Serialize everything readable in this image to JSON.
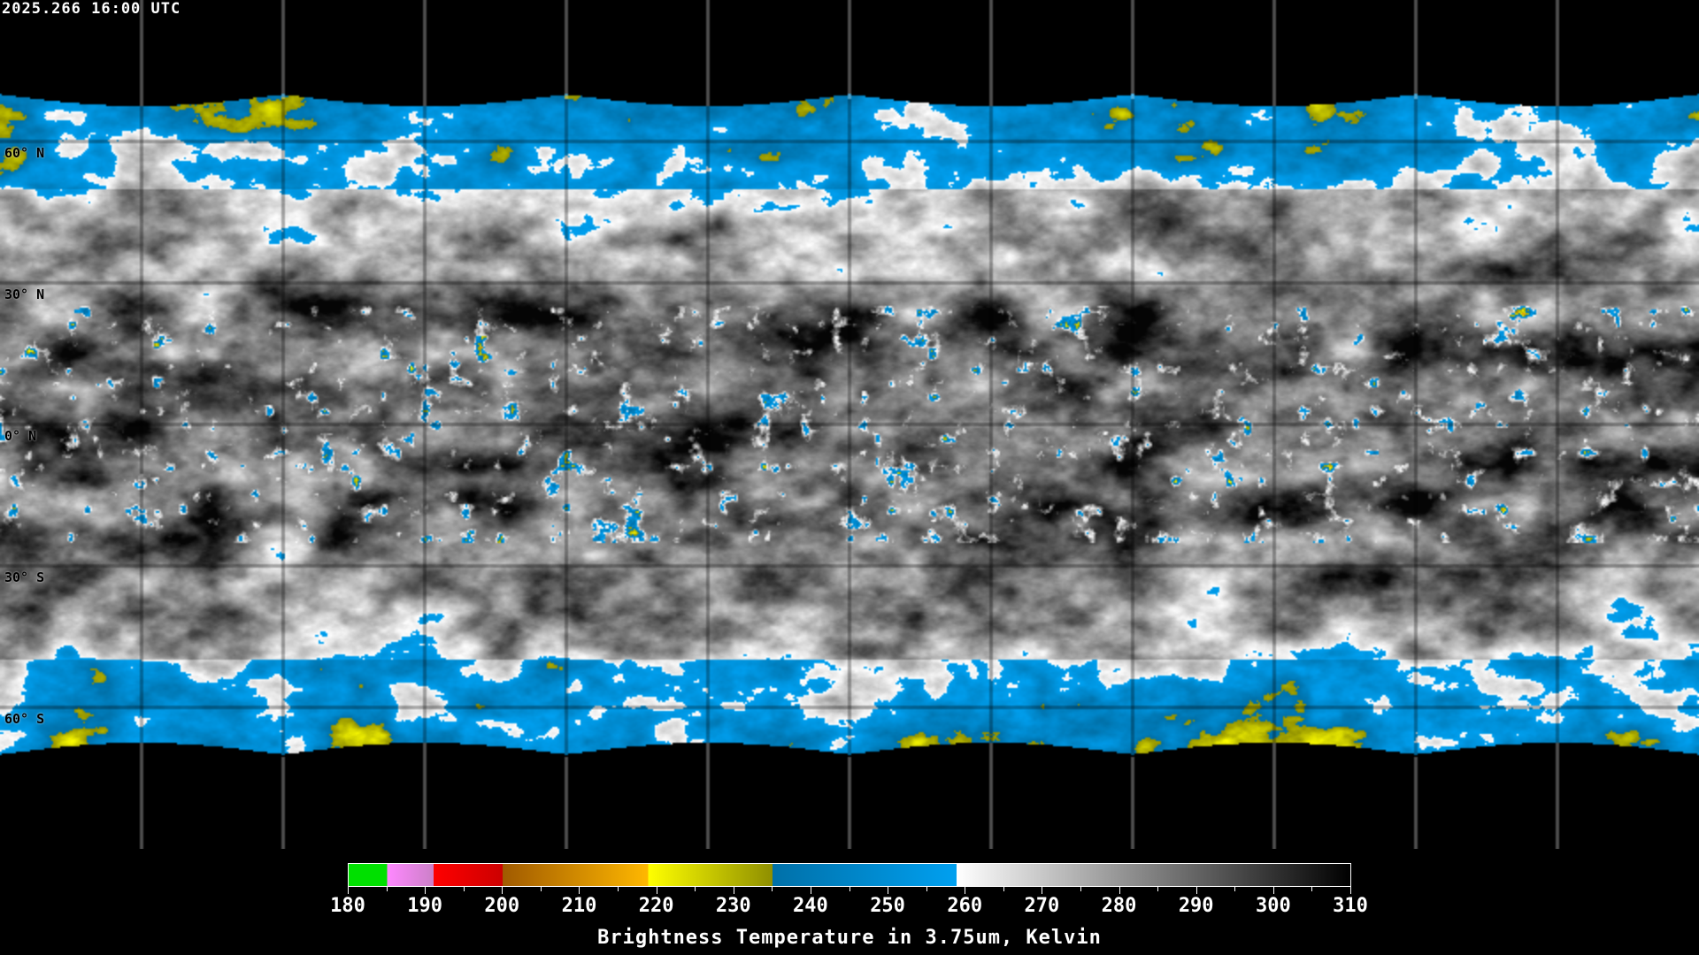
{
  "header": {
    "timestamp": "2025.266 16:00 UTC"
  },
  "map": {
    "projection": "equirectangular",
    "grid_step_degrees": 30,
    "lat_labels": [
      "60° N",
      "30° N",
      "0° N",
      "30° S",
      "60° S"
    ],
    "coastline_color": "#ffffff",
    "grid_color_on_data": "#000000",
    "grid_color_on_background": "#ffffff"
  },
  "colorbar": {
    "title": "Brightness Temperature in 3.75um, Kelvin",
    "ticks": [
      "180",
      "190",
      "200",
      "210",
      "220",
      "230",
      "240",
      "250",
      "260",
      "270",
      "280",
      "290",
      "300",
      "310"
    ],
    "range": [
      180,
      310
    ],
    "segments": [
      {
        "from": 180,
        "to": 185,
        "colors": [
          "#00e000",
          "#00e000"
        ]
      },
      {
        "from": 185,
        "to": 191,
        "colors": [
          "#ff88ff",
          "#cc80c8"
        ]
      },
      {
        "from": 191,
        "to": 200,
        "colors": [
          "#ff0000",
          "#cc0000"
        ]
      },
      {
        "from": 200,
        "to": 219,
        "colors": [
          "#a05a00",
          "#ffb800"
        ]
      },
      {
        "from": 219,
        "to": 235,
        "colors": [
          "#ffff00",
          "#8f8f00"
        ]
      },
      {
        "from": 235,
        "to": 259,
        "colors": [
          "#0070a8",
          "#00a0f0"
        ]
      },
      {
        "from": 259,
        "to": 310,
        "colors": [
          "#ffffff",
          "#000000"
        ]
      }
    ]
  }
}
